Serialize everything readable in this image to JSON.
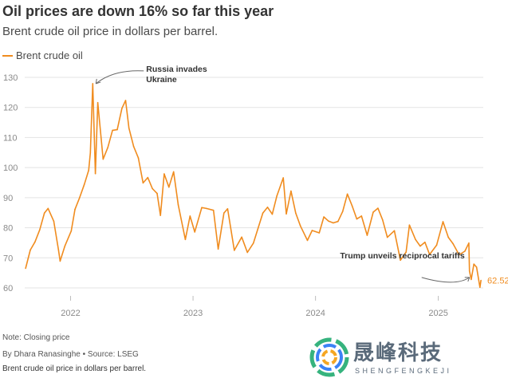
{
  "header": {
    "title": "Oil prices are down 16% so far this year",
    "subtitle": "Brent crude oil price in dollars per barrel."
  },
  "footer": {
    "note": "Note: Closing price",
    "byline": "By Dhara Ranasinghe  • Source: LSEG",
    "caption": "Brent crude oil price in dollars per barrel."
  },
  "watermark": {
    "chinese": "晟峰科技",
    "english": "SHENGFENGKEJI"
  },
  "colors": {
    "line": "#f08c1f",
    "grid": "#e3e3e3",
    "axis_text": "#8a8a8a",
    "annotation_text": "#333333"
  },
  "chart_data": {
    "type": "line",
    "title": "Oil prices are down 16% so far this year",
    "subtitle": "Brent crude oil price in dollars per barrel.",
    "legend": {
      "placement": "top-left",
      "entries": [
        "Brent crude oil"
      ]
    },
    "grid": true,
    "ylim": [
      60,
      130
    ],
    "yticks": [
      60,
      70,
      80,
      90,
      100,
      110,
      120,
      130
    ],
    "xlim": [
      "2021-08-15",
      "2025-05-15"
    ],
    "xticks": [
      {
        "value": "2022-01-01",
        "label": "2022"
      },
      {
        "value": "2023-01-01",
        "label": "2023"
      },
      {
        "value": "2024-01-01",
        "label": "2024"
      },
      {
        "value": "2025-01-01",
        "label": "2025"
      }
    ],
    "series": [
      {
        "name": "Brent crude oil",
        "color": "#f08c1f",
        "points": [
          [
            "2021-08-20",
            66.5
          ],
          [
            "2021-09-03",
            72.6
          ],
          [
            "2021-09-17",
            75.3
          ],
          [
            "2021-10-01",
            79.3
          ],
          [
            "2021-10-15",
            84.9
          ],
          [
            "2021-10-26",
            86.4
          ],
          [
            "2021-11-12",
            82.2
          ],
          [
            "2021-11-26",
            72.7
          ],
          [
            "2021-12-01",
            68.9
          ],
          [
            "2021-12-15",
            73.9
          ],
          [
            "2022-01-03",
            78.9
          ],
          [
            "2022-01-14",
            86.1
          ],
          [
            "2022-01-28",
            90.0
          ],
          [
            "2022-02-11",
            94.4
          ],
          [
            "2022-02-24",
            99.1
          ],
          [
            "2022-03-01",
            104.9
          ],
          [
            "2022-03-08",
            127.9
          ],
          [
            "2022-03-16",
            98.0
          ],
          [
            "2022-03-23",
            121.6
          ],
          [
            "2022-04-08",
            102.8
          ],
          [
            "2022-04-22",
            106.7
          ],
          [
            "2022-05-06",
            112.4
          ],
          [
            "2022-05-20",
            112.6
          ],
          [
            "2022-06-03",
            119.7
          ],
          [
            "2022-06-14",
            122.3
          ],
          [
            "2022-06-24",
            113.1
          ],
          [
            "2022-07-08",
            107.0
          ],
          [
            "2022-07-22",
            103.2
          ],
          [
            "2022-08-05",
            94.9
          ],
          [
            "2022-08-19",
            96.7
          ],
          [
            "2022-09-02",
            93.0
          ],
          [
            "2022-09-16",
            91.4
          ],
          [
            "2022-09-26",
            84.1
          ],
          [
            "2022-10-07",
            97.9
          ],
          [
            "2022-10-21",
            93.5
          ],
          [
            "2022-11-04",
            98.6
          ],
          [
            "2022-11-18",
            87.6
          ],
          [
            "2022-12-09",
            76.1
          ],
          [
            "2022-12-23",
            83.9
          ],
          [
            "2023-01-06",
            78.6
          ],
          [
            "2023-01-27",
            86.7
          ],
          [
            "2023-02-10",
            86.4
          ],
          [
            "2023-03-03",
            85.8
          ],
          [
            "2023-03-17",
            72.9
          ],
          [
            "2023-04-03",
            84.9
          ],
          [
            "2023-04-14",
            86.3
          ],
          [
            "2023-05-04",
            72.5
          ],
          [
            "2023-05-26",
            76.9
          ],
          [
            "2023-06-12",
            71.8
          ],
          [
            "2023-06-30",
            74.9
          ],
          [
            "2023-07-14",
            79.9
          ],
          [
            "2023-07-28",
            84.9
          ],
          [
            "2023-08-11",
            86.8
          ],
          [
            "2023-08-25",
            84.5
          ],
          [
            "2023-09-08",
            90.6
          ],
          [
            "2023-09-27",
            96.6
          ],
          [
            "2023-10-06",
            84.6
          ],
          [
            "2023-10-20",
            92.2
          ],
          [
            "2023-11-03",
            84.9
          ],
          [
            "2023-11-17",
            80.6
          ],
          [
            "2023-12-08",
            75.8
          ],
          [
            "2023-12-22",
            79.1
          ],
          [
            "2024-01-12",
            78.3
          ],
          [
            "2024-01-26",
            83.6
          ],
          [
            "2024-02-09",
            82.2
          ],
          [
            "2024-02-23",
            81.6
          ],
          [
            "2024-03-08",
            82.1
          ],
          [
            "2024-03-22",
            85.4
          ],
          [
            "2024-04-05",
            91.2
          ],
          [
            "2024-04-19",
            87.3
          ],
          [
            "2024-05-03",
            82.9
          ],
          [
            "2024-05-17",
            83.9
          ],
          [
            "2024-06-03",
            77.5
          ],
          [
            "2024-06-21",
            85.2
          ],
          [
            "2024-07-05",
            86.5
          ],
          [
            "2024-07-19",
            82.6
          ],
          [
            "2024-08-02",
            76.8
          ],
          [
            "2024-08-23",
            79.0
          ],
          [
            "2024-09-10",
            69.2
          ],
          [
            "2024-09-27",
            71.9
          ],
          [
            "2024-10-07",
            80.9
          ],
          [
            "2024-10-25",
            76.1
          ],
          [
            "2024-11-08",
            73.9
          ],
          [
            "2024-11-22",
            75.2
          ],
          [
            "2024-12-06",
            71.1
          ],
          [
            "2024-12-27",
            74.2
          ],
          [
            "2025-01-15",
            82.0
          ],
          [
            "2025-01-31",
            76.8
          ],
          [
            "2025-02-14",
            74.7
          ],
          [
            "2025-03-04",
            71.0
          ],
          [
            "2025-03-21",
            72.2
          ],
          [
            "2025-04-02",
            74.9
          ],
          [
            "2025-04-04",
            65.6
          ],
          [
            "2025-04-09",
            62.8
          ],
          [
            "2025-04-17",
            67.9
          ],
          [
            "2025-04-25",
            66.9
          ],
          [
            "2025-05-05",
            60.2
          ],
          [
            "2025-05-08",
            62.5
          ]
        ]
      }
    ],
    "end_label": {
      "date": "2025-05-08",
      "value": 62.52,
      "text": "62.52"
    },
    "annotations": [
      {
        "text": "Russia invades Ukraine",
        "date": "2022-03-08",
        "value": 127.9
      },
      {
        "text": "Trump unveils reciprocal tariffs",
        "date": "2025-04-04",
        "value": 65.6
      }
    ]
  }
}
